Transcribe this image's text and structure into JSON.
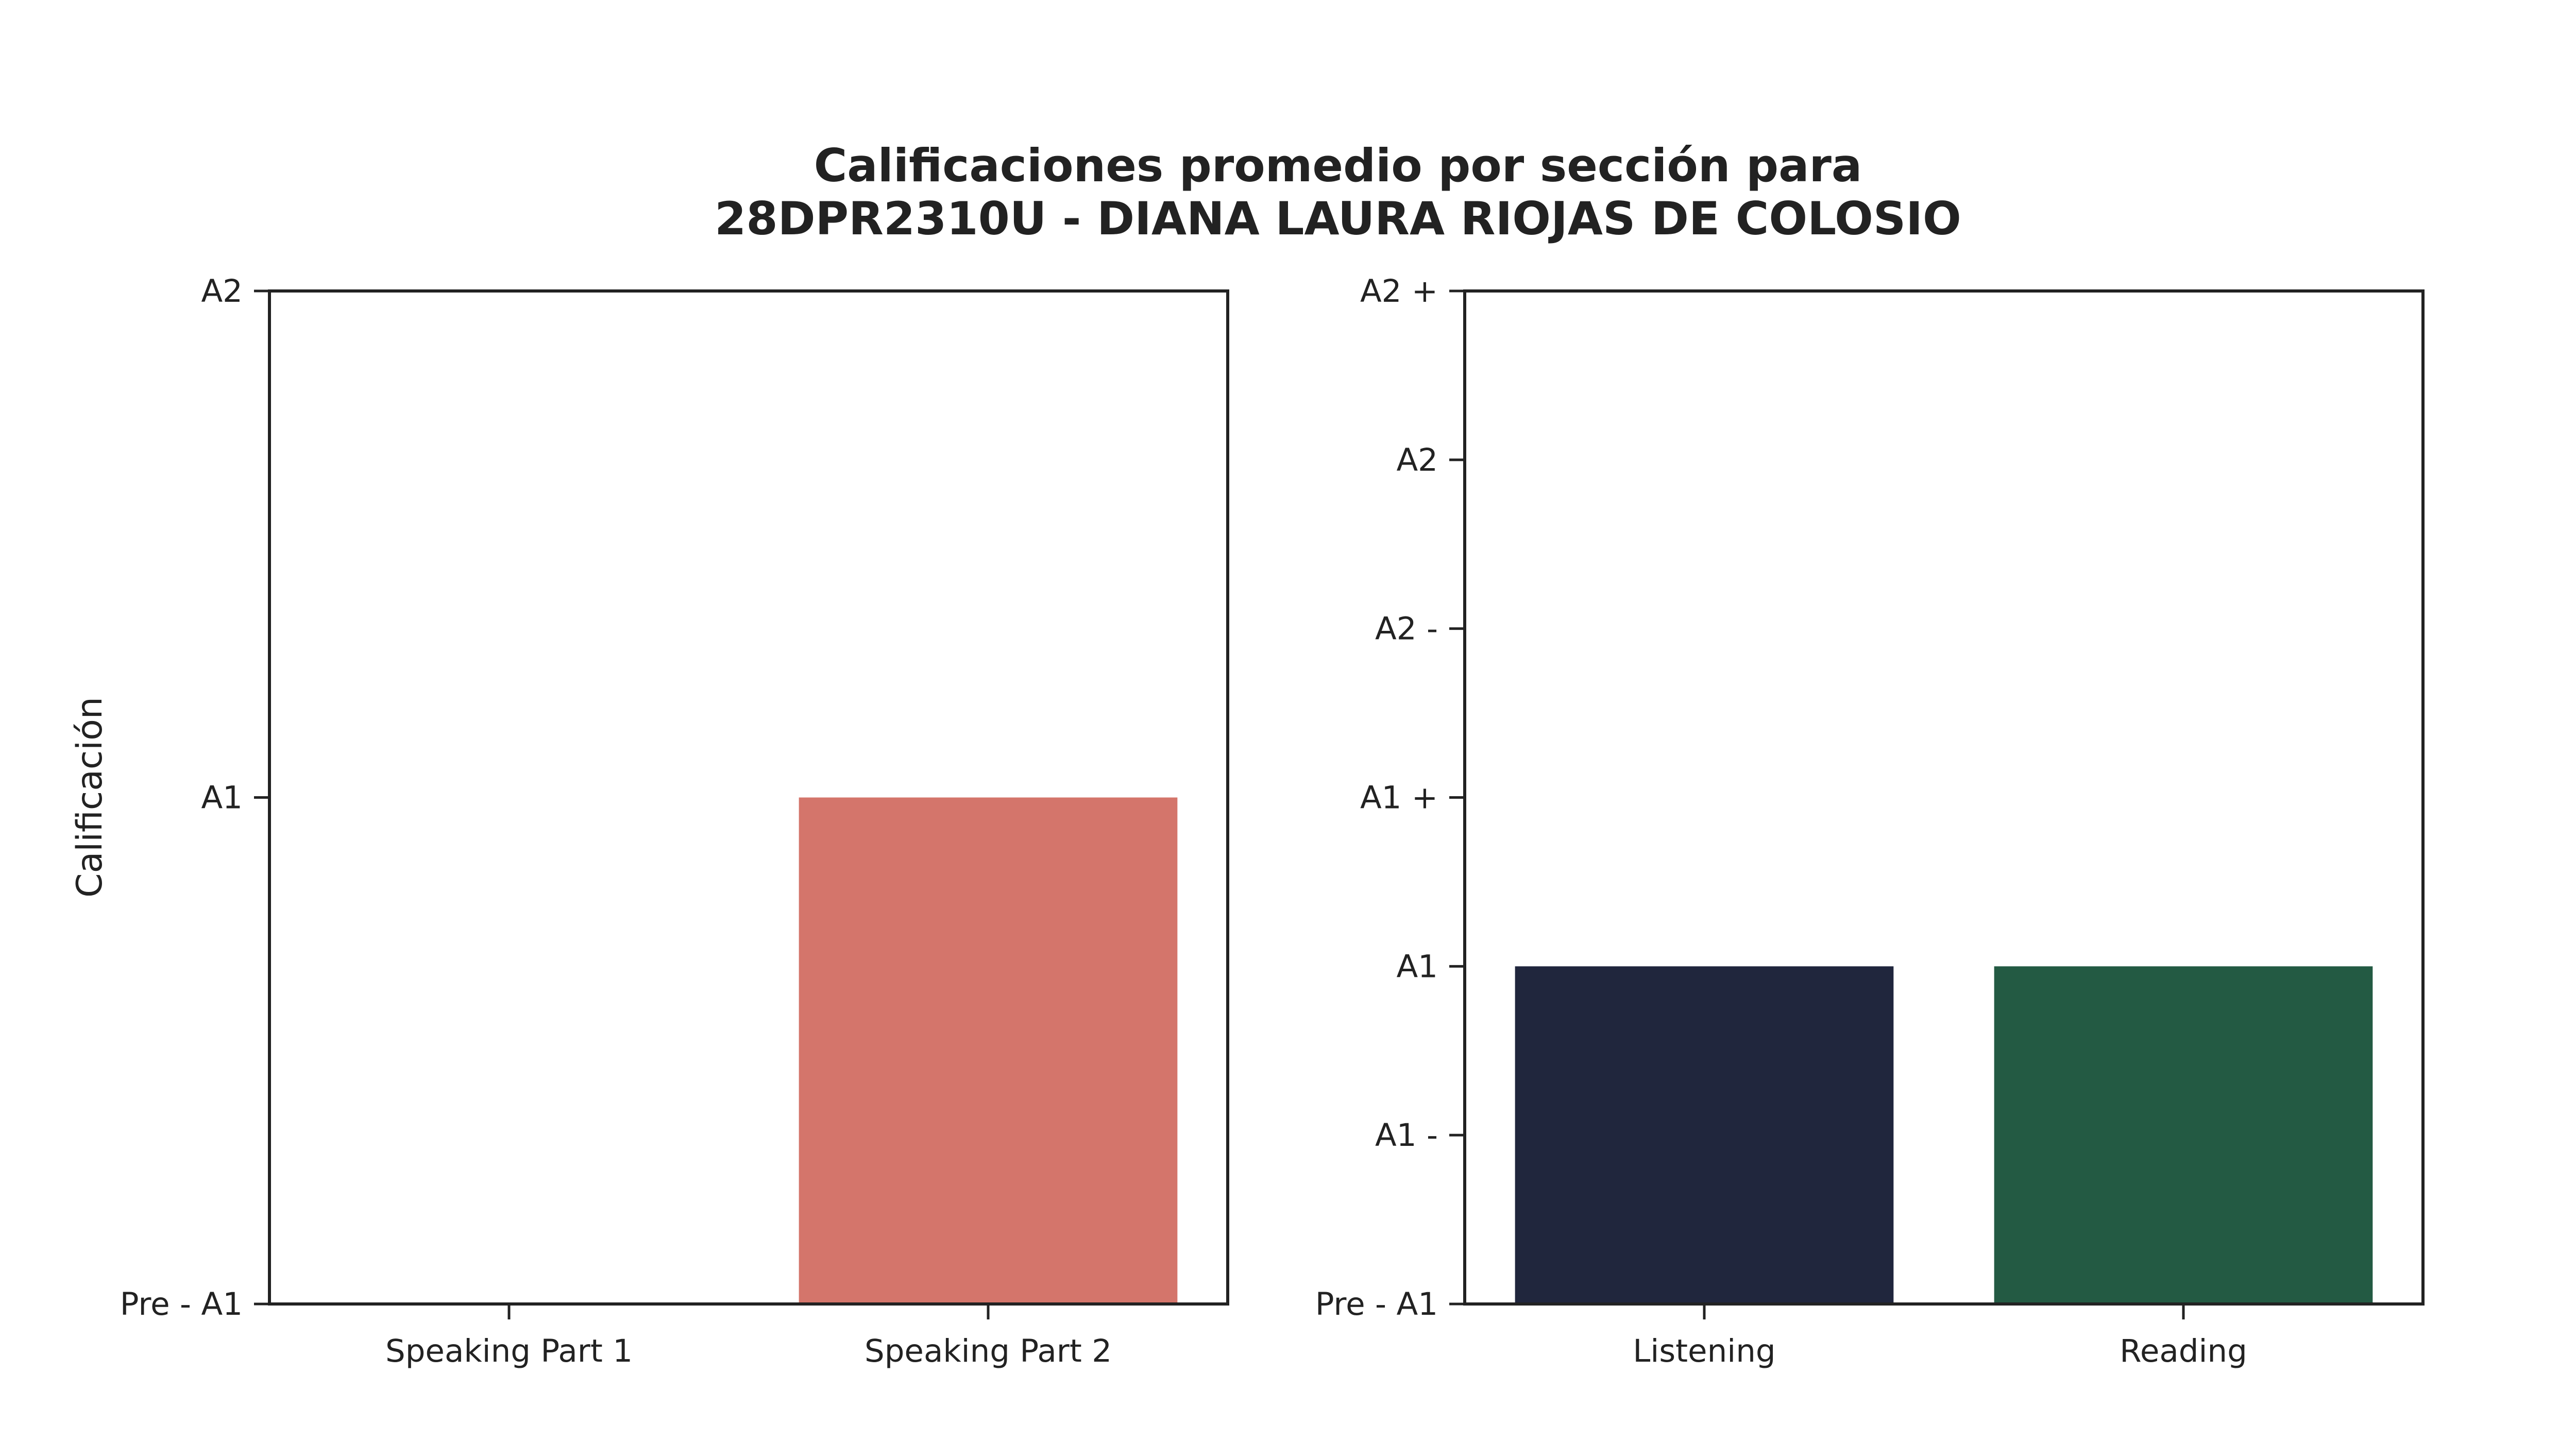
{
  "chart_data": {
    "title_lines": [
      "Calificaciones promedio por sección para",
      "28DPR2310U - DIANA LAURA RIOJAS DE COLOSIO"
    ],
    "charts": [
      {
        "type": "bar",
        "ylabel": "Calificación",
        "y_tick_labels": [
          "Pre - A1",
          "A1",
          "A2"
        ],
        "ylim": [
          0,
          2
        ],
        "categories": [
          "Speaking Part 1",
          "Speaking Part 2"
        ],
        "values": [
          0,
          1
        ],
        "colors": [
          "#d4756b",
          "#d4756b"
        ]
      },
      {
        "type": "bar",
        "ylabel": "",
        "y_tick_labels": [
          "Pre - A1",
          "A1 -",
          "A1",
          "A1 +",
          "A2 -",
          "A2",
          "A2 +"
        ],
        "ylim": [
          0,
          6
        ],
        "categories": [
          "Listening",
          "Reading"
        ],
        "values": [
          2,
          2
        ],
        "colors": [
          "#20263d",
          "#235a43"
        ]
      }
    ]
  }
}
